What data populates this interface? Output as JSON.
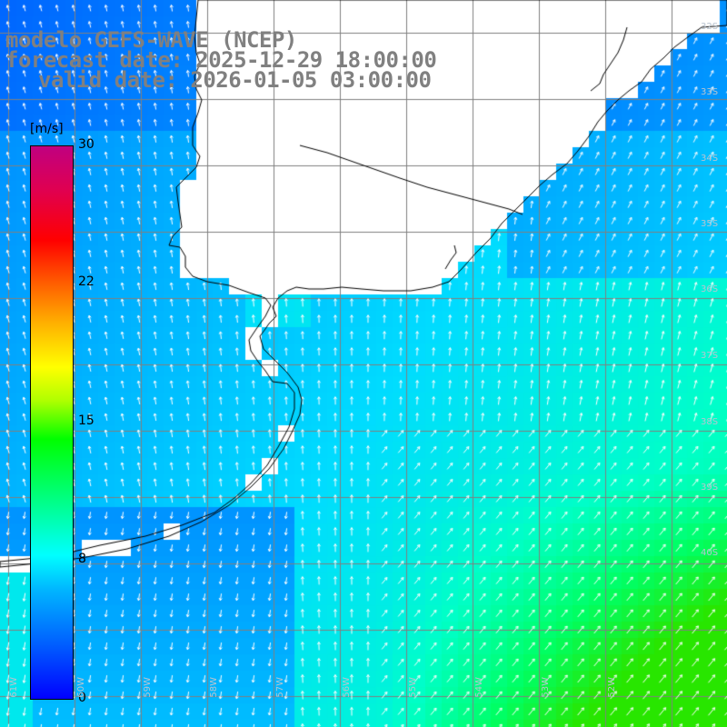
{
  "title": {
    "line1": "modelo GEFS-WAVE (NCEP)",
    "line2": "forecast date: 2025-12-29 18:00:00",
    "line3": "valid date: 2026-01-05 03:00:00"
  },
  "colorbar": {
    "unit": "[m/s]",
    "ticks": [
      "30",
      "22",
      "15",
      "8",
      "0"
    ],
    "tick_values": [
      30,
      22,
      15,
      8,
      0
    ]
  },
  "grid": {
    "lat_labels": [
      "32S",
      "33S",
      "34S",
      "35S",
      "36S",
      "37S",
      "38S",
      "39S",
      "40S"
    ],
    "lon_labels": [
      "61W",
      "60W",
      "59W",
      "58W",
      "57W",
      "56W",
      "55W",
      "54W",
      "53W",
      "52W"
    ]
  },
  "colors": {
    "land": "#ffffff",
    "coast": "#000000",
    "grid": "#808080",
    "arrow": "#ffffff",
    "title": "#808080"
  },
  "field": {
    "variable": "wind speed",
    "units": "m/s",
    "approx_range": [
      2,
      12
    ],
    "arrow_direction": "southerly (toward north) over most of domain; southwesterly toward northeast in south-east; northerly near south-west coast"
  }
}
